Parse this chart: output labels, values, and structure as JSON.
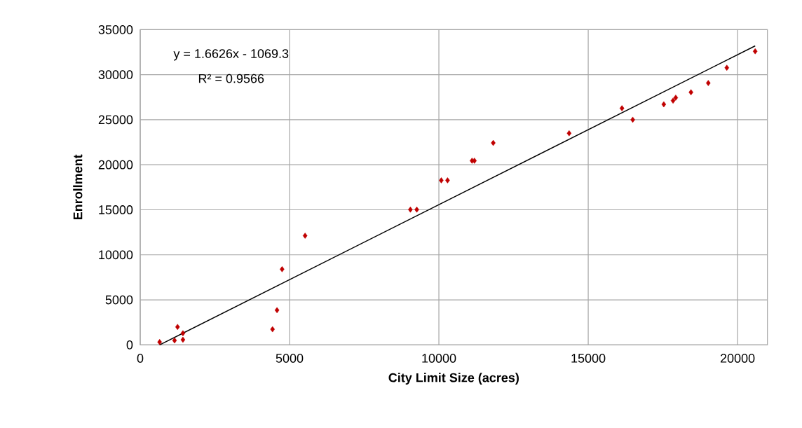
{
  "chart_data": {
    "type": "scatter",
    "xlabel": "City Limit Size (acres)",
    "ylabel": "Enrollment",
    "xlim": [
      0,
      21000
    ],
    "xticks": [
      0,
      5000,
      10000,
      15000,
      20000
    ],
    "ylim": [
      0,
      35000
    ],
    "yticks": [
      0,
      5000,
      10000,
      15000,
      20000,
      25000,
      30000,
      35000
    ],
    "grid": true,
    "annotations": [
      "y = 1.6626x - 1069.3",
      "R² = 0.9566"
    ],
    "series": [
      {
        "marker": "diamond",
        "color": "#c00000",
        "x": [
          650,
          1150,
          1250,
          1430,
          1430,
          4430,
          4580,
          4750,
          5520,
          9045,
          9260,
          10080,
          10290,
          11110,
          11190,
          11820,
          14360,
          16130,
          16490,
          17530,
          17840,
          17930,
          18440,
          19020,
          19640,
          20590
        ],
        "values": [
          310,
          490,
          1990,
          1290,
          570,
          1730,
          3850,
          8400,
          12120,
          15020,
          15020,
          18270,
          18270,
          20450,
          20450,
          22420,
          23500,
          26270,
          25000,
          26710,
          27120,
          27450,
          28050,
          29070,
          30770,
          32600
        ]
      },
      {
        "type": "line",
        "color": "#000000",
        "x": [
          650,
          20590
        ],
        "values": [
          0,
          33200
        ]
      }
    ]
  }
}
